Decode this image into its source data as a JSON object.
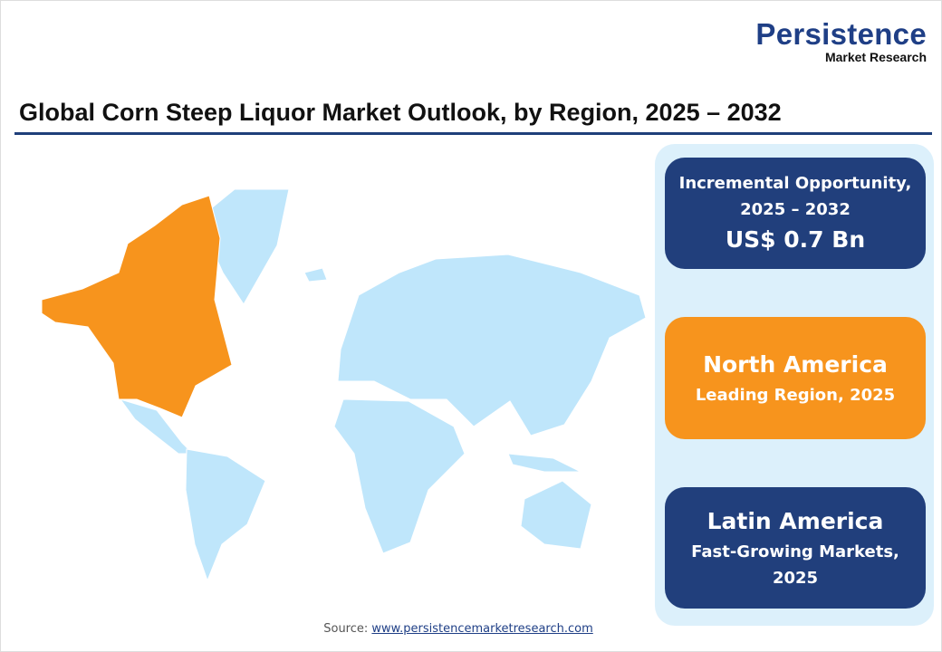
{
  "logo": {
    "main": "Persistence",
    "sub": "Market Research"
  },
  "title": "Global Corn Steep Liquor Market Outlook, by Region, 2025 – 2032",
  "cards": [
    {
      "line1": "Incremental Opportunity,",
      "line2": "2025 – 2032",
      "value": "US$ 0.7 Bn"
    },
    {
      "heading": "North America",
      "sub": "Leading Region, 2025"
    },
    {
      "heading": "Latin America",
      "sub1": "Fast-Growing Markets,",
      "sub2": "2025"
    }
  ],
  "source": {
    "label": "Source: ",
    "link": "www.persistencemarketresearch.com"
  },
  "map": {
    "highlighted_region": "North America",
    "highlight_color": "#f7941d",
    "base_color": "#bfe6fb"
  }
}
